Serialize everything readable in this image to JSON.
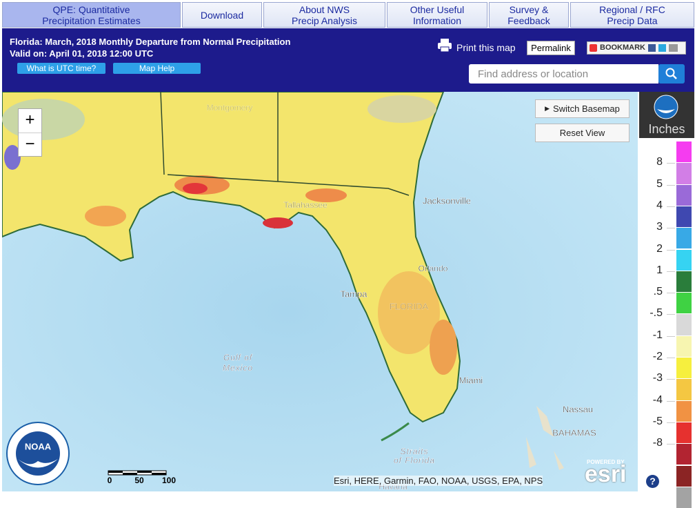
{
  "tabs": [
    [
      "QPE: Quantitative",
      "Precipitation Estimates"
    ],
    [
      "Download"
    ],
    [
      "About NWS",
      "Precip Analysis"
    ],
    [
      "Other Useful",
      "Information"
    ],
    [
      "Survey &",
      "Feedback"
    ],
    [
      "Regional / RFC",
      "Precip Data"
    ]
  ],
  "header": {
    "title": "Florida: March, 2018 Monthly Departure from Normal Precipitation",
    "valid": "Valid on: April 01, 2018 12:00 UTC",
    "buttons": [
      "What is UTC time?",
      "Map Help"
    ],
    "print": "Print this map",
    "permalink": "Permalink",
    "bookmark": "BOOKMARK",
    "search_placeholder": "Find address or location"
  },
  "map": {
    "zoom_in": "+",
    "zoom_out": "−",
    "switch_basemap": "Switch Basemap",
    "reset_view": "Reset View",
    "labels": [
      "Montgomery",
      "Tallahassee",
      "Jacksonville",
      "Orlando",
      "Tampa",
      "FLORIDA",
      "Miami",
      "Nassau",
      "BAHAMAS",
      "Gulf of",
      "Mexico",
      "Straits",
      "of Florida",
      "Havana"
    ],
    "scale": [
      "0",
      "50",
      "100mi"
    ],
    "attribution": "Esri, HERE, Garmin, FAO, NOAA, USGS, EPA, NPS",
    "powered_by": "POWERED BY",
    "esri": "esri",
    "logo": "NOAA"
  },
  "legend": {
    "title": "Inches",
    "labels": [
      "8",
      "5",
      "4",
      "3",
      "2",
      "1",
      ".5",
      "-.5",
      "-1",
      "-2",
      "-3",
      "-4",
      "-5",
      "-8"
    ],
    "colors": [
      "#f53cf0",
      "#d27ee6",
      "#9a6ad8",
      "#3f48b0",
      "#38a9e6",
      "#36d3f2",
      "#2a7d3b",
      "#3fd243",
      "#d9d9d9",
      "#f7f5b0",
      "#f6ef3e",
      "#f4c742",
      "#f19243",
      "#e6312f",
      "#b22431",
      "#8b2424",
      "#a3a3a3"
    ],
    "help": "?"
  }
}
